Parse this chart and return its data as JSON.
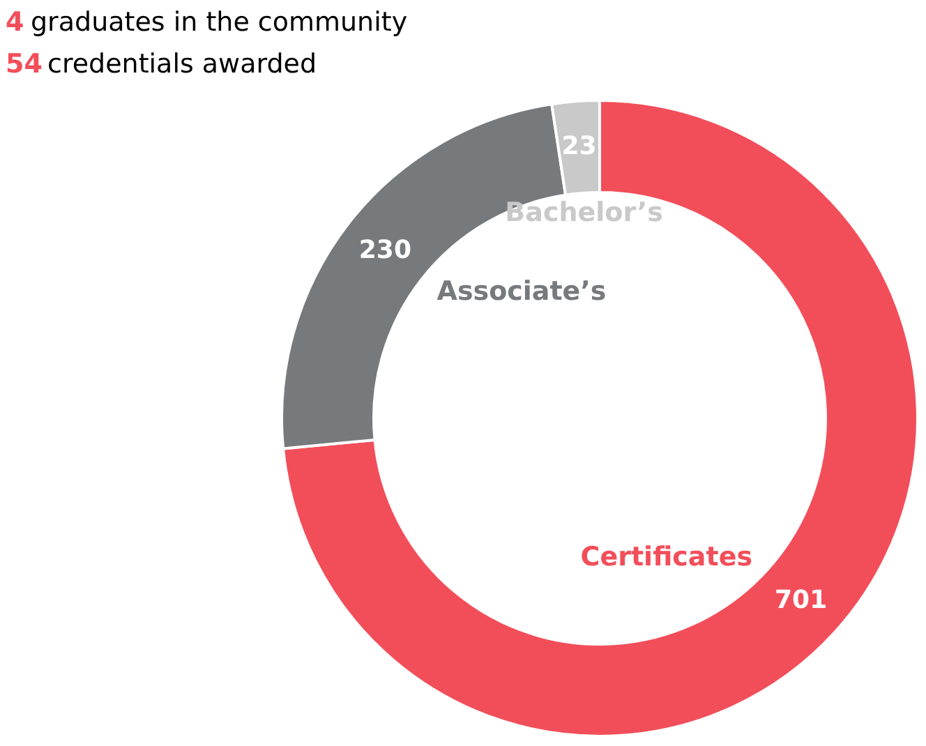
{
  "chart_data": {
    "type": "donut",
    "categories": [
      "Certificates",
      "Associate’s",
      "Bachelor’s"
    ],
    "values": [
      701,
      230,
      23
    ],
    "colors": [
      "#f24e5a",
      "#767a7d",
      "#c8c9c8"
    ],
    "data_labels": true,
    "annotations": [
      "4 graduates in the community",
      "54 credentials awarded"
    ]
  }
}
